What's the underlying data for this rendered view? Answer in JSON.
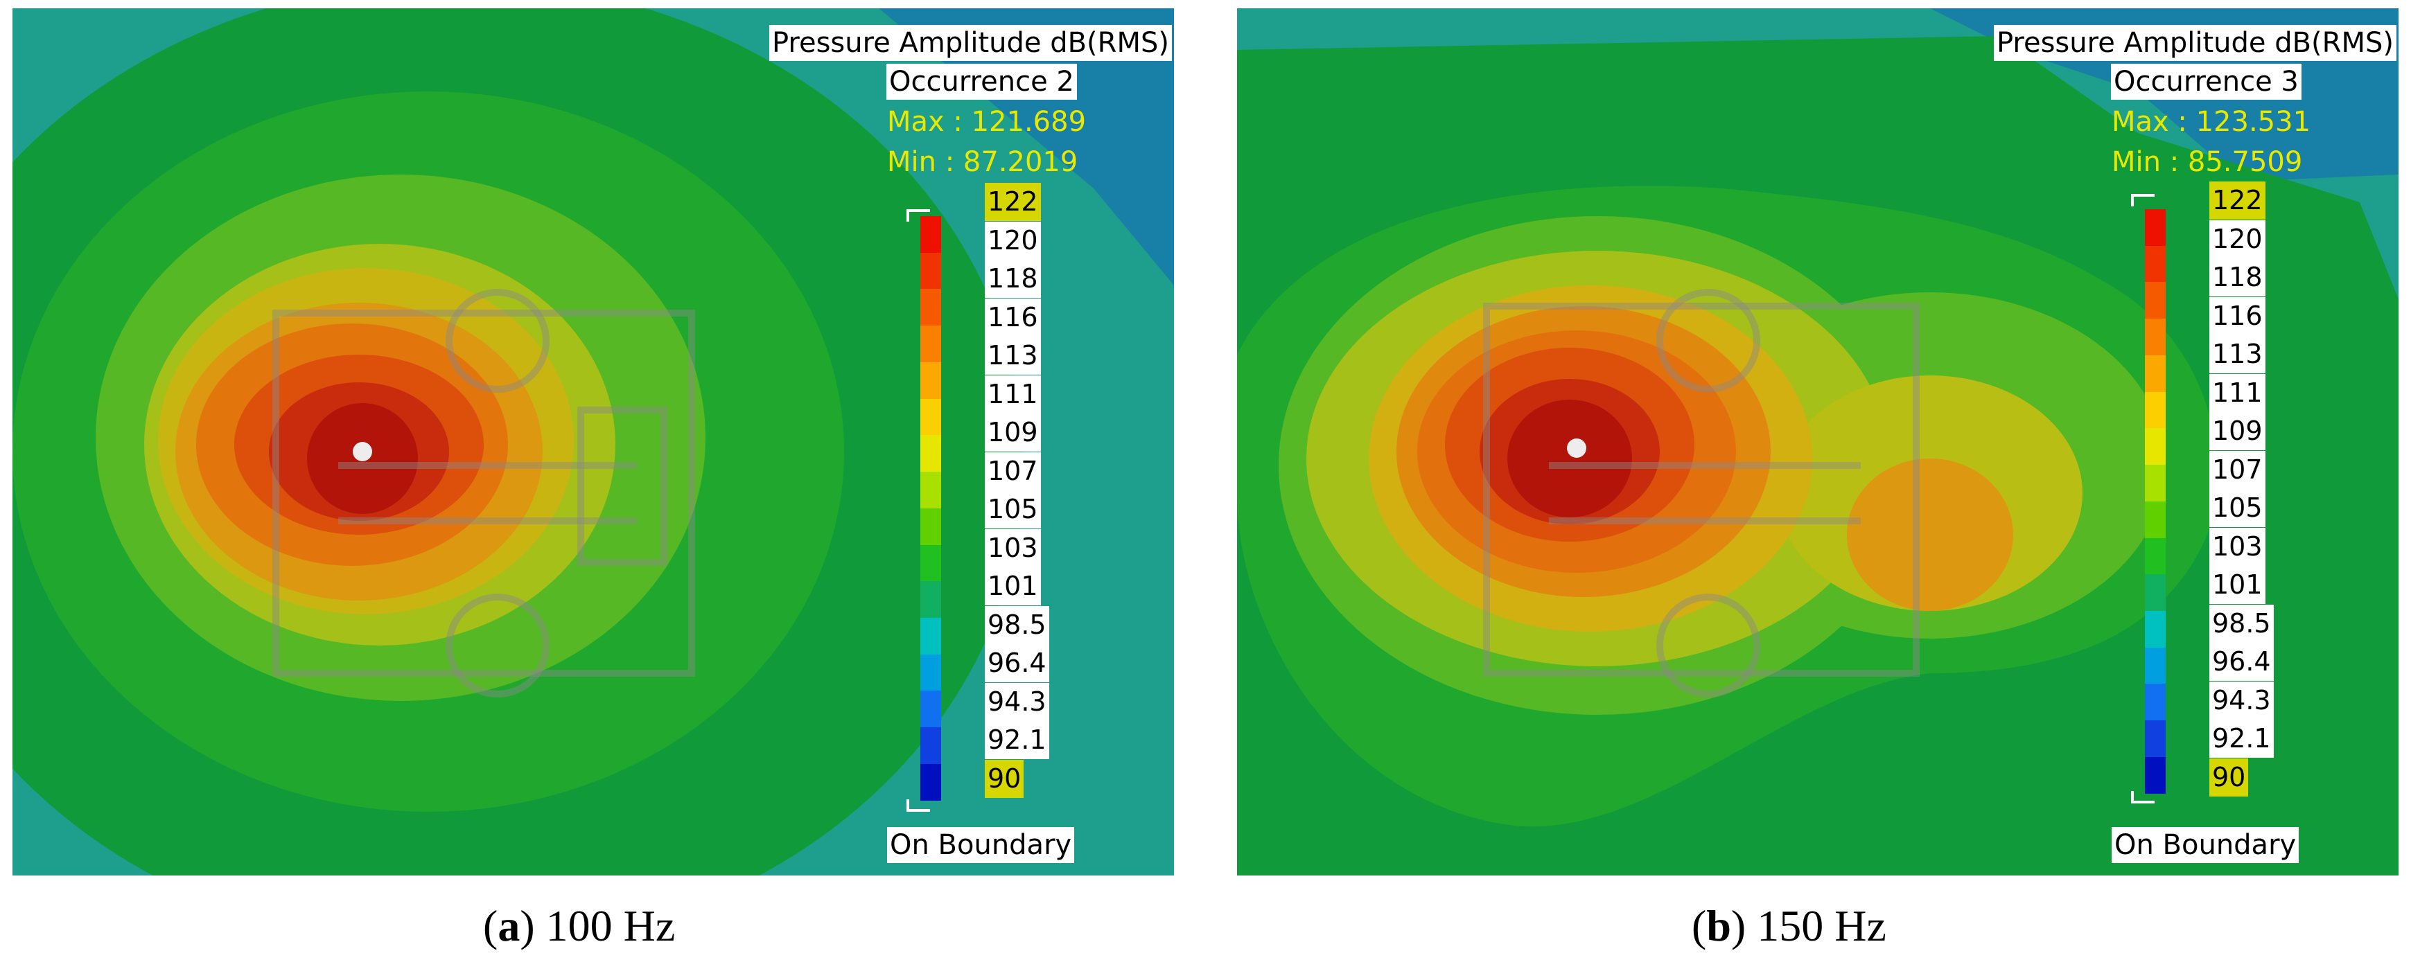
{
  "chart_data": [
    {
      "type": "heatmap",
      "id": "a",
      "title": "Pressure Amplitude dB(RMS)",
      "occurrence": "Occurrence 2",
      "max_label": "Max : 121.689",
      "min_label": "Min : 87.2019",
      "max": 121.689,
      "min": 87.2019,
      "colorbar_ticks": [
        "122",
        "120",
        "118",
        "116",
        "113",
        "111",
        "109",
        "107",
        "105",
        "103",
        "101",
        "98.5",
        "96.4",
        "94.3",
        "92.1",
        "90"
      ],
      "colorbar_range": [
        90,
        122
      ],
      "boundary_label": "On Boundary",
      "caption_letter": "a",
      "caption_text": "100 Hz"
    },
    {
      "type": "heatmap",
      "id": "b",
      "title": "Pressure Amplitude dB(RMS)",
      "occurrence": "Occurrence 3",
      "max_label": "Max : 123.531",
      "min_label": "Min : 85.7509",
      "max": 123.531,
      "min": 85.7509,
      "colorbar_ticks": [
        "122",
        "120",
        "118",
        "116",
        "113",
        "111",
        "109",
        "107",
        "105",
        "103",
        "101",
        "98.5",
        "96.4",
        "94.3",
        "92.1",
        "90"
      ],
      "colorbar_range": [
        90,
        122
      ],
      "boundary_label": "On Boundary",
      "caption_letter": "b",
      "caption_text": "150 Hz"
    }
  ],
  "colors": {
    "colorbar": [
      "#ee1100",
      "#f03300",
      "#f55a00",
      "#f98000",
      "#fba800",
      "#fcd000",
      "#e6e600",
      "#a8e000",
      "#60d000",
      "#20c020",
      "#10b060",
      "#00c0c0",
      "#00a0e0",
      "#1070f0",
      "#1040e0",
      "#0010c0"
    ],
    "bg_teal": "#1aa39a",
    "bg_green": "#119a3a",
    "level_colors": [
      "#2fae2a",
      "#56b824",
      "#8cc21c",
      "#b6c414",
      "#d6b00e",
      "#e28a0c",
      "#e0600c",
      "#d4380c",
      "#bf1a0c"
    ]
  }
}
